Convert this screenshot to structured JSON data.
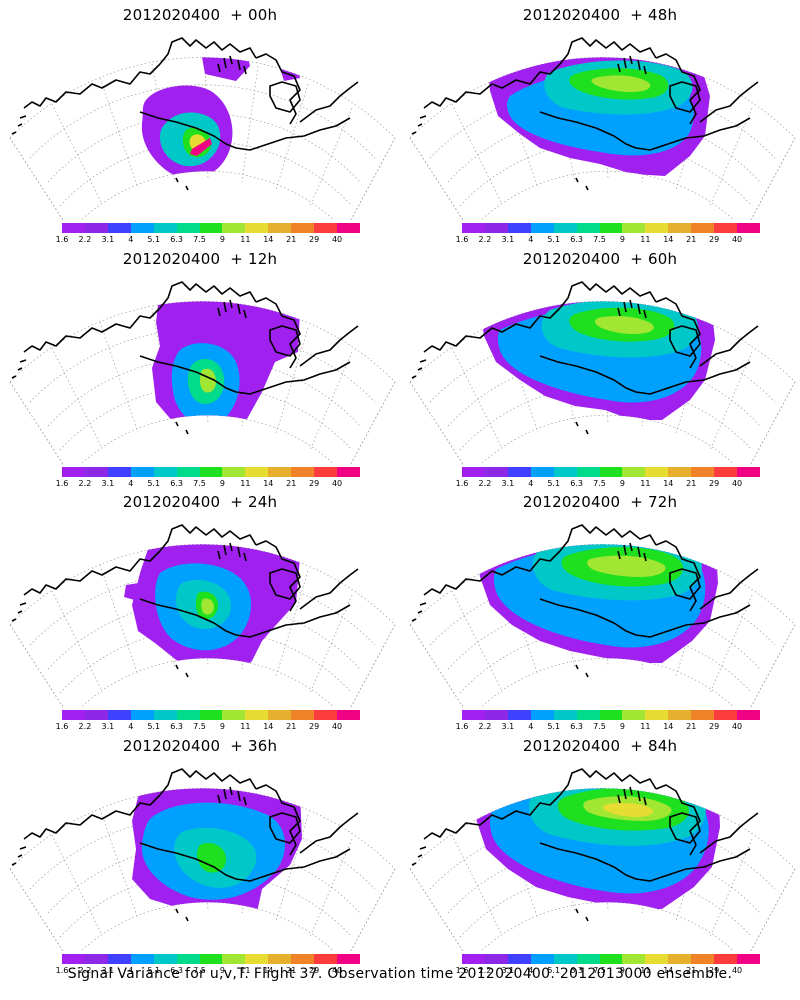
{
  "panels": [
    {
      "title": "2012020400  + 00h",
      "stage": 0
    },
    {
      "title": "2012020400  + 48h",
      "stage": 4
    },
    {
      "title": "2012020400  + 12h",
      "stage": 1
    },
    {
      "title": "2012020400  + 60h",
      "stage": 5
    },
    {
      "title": "2012020400  + 24h",
      "stage": 2
    },
    {
      "title": "2012020400  + 72h",
      "stage": 6
    },
    {
      "title": "2012020400  + 36h",
      "stage": 3
    },
    {
      "title": "2012020400  + 84h",
      "stage": 7
    }
  ],
  "legend": {
    "labels": [
      "1.6",
      "2.2",
      "3.1",
      "4",
      "5.1",
      "6.3",
      "7.5",
      "9",
      "11",
      "14",
      "21",
      "29",
      "40"
    ],
    "colors": [
      "#a020f0",
      "#8c28e6",
      "#4040ff",
      "#00a0ff",
      "#00c8c8",
      "#00dc8c",
      "#1ee01e",
      "#a0e632",
      "#e6dc32",
      "#e6af2d",
      "#f08228",
      "#fa3c3c",
      "#f00082"
    ]
  },
  "caption": "Signal Variance for u,v,T. Flight 37. Observation time 2012020400. 2012013000 ensemble."
}
